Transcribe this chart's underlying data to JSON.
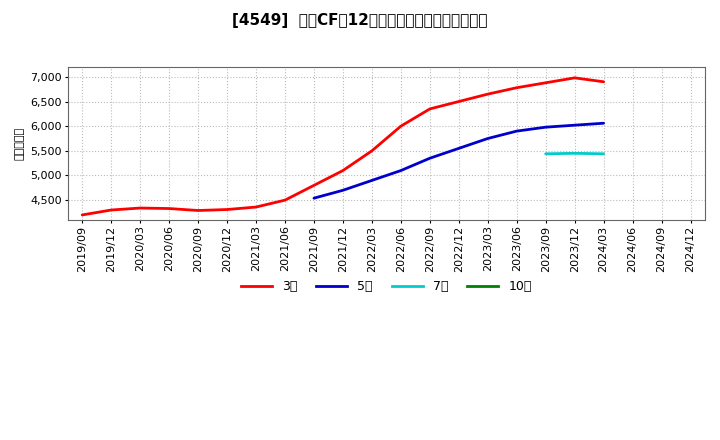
{
  "title": "[4549]  営業CFだ12か月移動合計の平均値の推移",
  "ylabel": "（百万円）",
  "ylim": [
    4100,
    7200
  ],
  "yticks": [
    4500,
    5000,
    5500,
    6000,
    6500,
    7000
  ],
  "background_color": "#ffffff",
  "plot_bg_color": "#ffffff",
  "grid_color": "#bbbbbb",
  "series": {
    "3年": {
      "color": "#ff0000",
      "x": [
        "2019/09",
        "2019/12",
        "2020/03",
        "2020/06",
        "2020/09",
        "2020/12",
        "2021/03",
        "2021/06",
        "2021/09",
        "2021/12",
        "2022/03",
        "2022/06",
        "2022/09",
        "2022/12",
        "2023/03",
        "2023/06",
        "2023/09",
        "2023/12",
        "2024/03"
      ],
      "y": [
        4200,
        4300,
        4340,
        4330,
        4290,
        4310,
        4360,
        4500,
        4800,
        5100,
        5500,
        6000,
        6350,
        6500,
        6650,
        6780,
        6880,
        6980,
        6900
      ]
    },
    "5年": {
      "color": "#0000cc",
      "x": [
        "2021/09",
        "2021/12",
        "2022/03",
        "2022/06",
        "2022/09",
        "2022/12",
        "2023/03",
        "2023/06",
        "2023/09",
        "2023/12",
        "2024/03"
      ],
      "y": [
        4540,
        4700,
        4900,
        5100,
        5350,
        5550,
        5750,
        5900,
        5980,
        6020,
        6060
      ]
    },
    "7年": {
      "color": "#00cccc",
      "x": [
        "2023/09",
        "2023/12",
        "2024/03"
      ],
      "y": [
        5440,
        5450,
        5440
      ]
    },
    "10年": {
      "color": "#008000",
      "x": [],
      "y": []
    }
  },
  "xticks": [
    "2019/09",
    "2019/12",
    "2020/03",
    "2020/06",
    "2020/09",
    "2020/12",
    "2021/03",
    "2021/06",
    "2021/09",
    "2021/12",
    "2022/03",
    "2022/06",
    "2022/09",
    "2022/12",
    "2023/03",
    "2023/06",
    "2023/09",
    "2023/12",
    "2024/03",
    "2024/06",
    "2024/09",
    "2024/12"
  ],
  "legend_labels": [
    "3年",
    "5年",
    "7年",
    "10年"
  ],
  "legend_colors": [
    "#ff0000",
    "#0000cc",
    "#00cccc",
    "#008000"
  ],
  "title_fontsize": 11,
  "axis_fontsize": 8,
  "tick_fontsize": 8,
  "legend_fontsize": 9
}
